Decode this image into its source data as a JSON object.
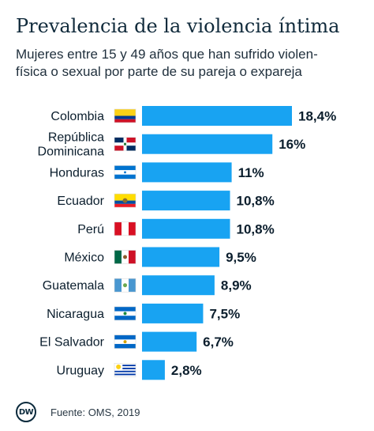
{
  "chart_data": {
    "type": "bar",
    "orientation": "horizontal",
    "title": "Prevalencia de la violencia íntima",
    "subtitle_lines": [
      "Mujeres entre 15 y 49 años que han sufrido violen-",
      "física o sexual por parte de su pareja o expareja"
    ],
    "categories": [
      [
        "Colombia"
      ],
      [
        "República",
        "Dominicana"
      ],
      [
        "Honduras"
      ],
      [
        "Ecuador"
      ],
      [
        "Perú"
      ],
      [
        "México"
      ],
      [
        "Guatemala"
      ],
      [
        "Nicaragua"
      ],
      [
        "El Salvador"
      ],
      [
        "Uruguay"
      ]
    ],
    "flags": [
      "colombia-flag",
      "dominican-republic-flag",
      "honduras-flag",
      "ecuador-flag",
      "peru-flag",
      "mexico-flag",
      "guatemala-flag",
      "nicaragua-flag",
      "el-salvador-flag",
      "uruguay-flag"
    ],
    "values": [
      18.4,
      16,
      11,
      10.8,
      10.8,
      9.5,
      8.9,
      7.5,
      6.7,
      2.8
    ],
    "value_labels": [
      "18,4%",
      "16%",
      "11%",
      "10,8%",
      "10,8%",
      "9,5%",
      "8,9%",
      "7,5%",
      "6,7%",
      "2,8%"
    ],
    "bar_color": "#18a3f2",
    "xlim": [
      0,
      18.4
    ],
    "grid": false,
    "legend": "none"
  },
  "footer": {
    "logo_text": "DW",
    "source": "Fuente: OMS, 2019"
  }
}
